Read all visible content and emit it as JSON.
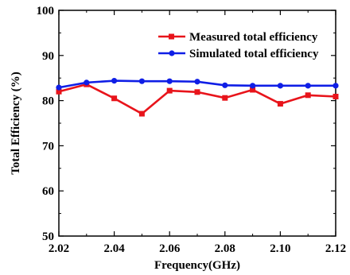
{
  "chart_data": {
    "type": "line",
    "xlabel": "Frequency(GHz)",
    "ylabel": "Total Efficiency (%)",
    "xlim": [
      2.02,
      2.12
    ],
    "ylim": [
      50,
      100
    ],
    "x_ticks": [
      "2.02",
      "2.04",
      "2.06",
      "2.08",
      "2.10",
      "2.12"
    ],
    "y_ticks": [
      "50",
      "60",
      "70",
      "80",
      "90",
      "100"
    ],
    "grid": false,
    "legend_position": "top-right",
    "x": [
      2.02,
      2.03,
      2.04,
      2.05,
      2.06,
      2.07,
      2.08,
      2.09,
      2.1,
      2.11,
      2.12
    ],
    "series": [
      {
        "name": "Measured total efficiency",
        "color": "#e8141b",
        "marker": "square",
        "values": [
          82.0,
          83.6,
          80.5,
          77.1,
          82.2,
          81.9,
          80.6,
          82.4,
          79.3,
          81.2,
          80.9
        ]
      },
      {
        "name": "Simulated total efficiency",
        "color": "#0f1ee6",
        "marker": "circle",
        "values": [
          82.9,
          84.0,
          84.4,
          84.3,
          84.3,
          84.2,
          83.4,
          83.3,
          83.3,
          83.3,
          83.3
        ]
      }
    ]
  }
}
